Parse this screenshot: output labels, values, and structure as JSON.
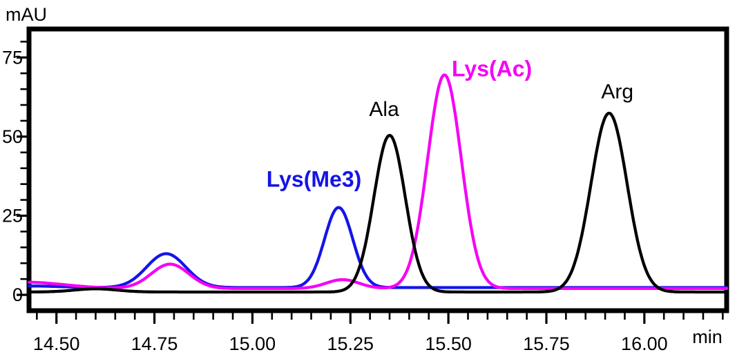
{
  "figure": {
    "background": "#ffffff",
    "frame_color": "#000000"
  },
  "chart_data": {
    "type": "line",
    "title": "",
    "xlabel": "min",
    "ylabel": "mAU",
    "xlim": [
      14.43,
      16.21
    ],
    "ylim": [
      -5,
      84
    ],
    "grid": false,
    "legend_position": "none (peaks labeled inline)",
    "x_major_ticks": [
      "14.50",
      "14.75",
      "15.00",
      "15.25",
      "15.50",
      "15.75",
      "16.00"
    ],
    "x_minor_tick_step": 0.05,
    "x_minor_tick_range": [
      14.45,
      16.2
    ],
    "y_major_ticks": [
      "0",
      "25",
      "50",
      "75"
    ],
    "y_minor_tick_step": 5,
    "y_minor_tick_range": [
      5,
      80
    ],
    "series": [
      {
        "name": "Lys(Me3) trace (blue)",
        "color": "#1414e8",
        "baseline_mAU": 2.3,
        "peaks": [
          {
            "center_min": 14.43,
            "height_mAU": 0.5,
            "sigma_min": 0.08
          },
          {
            "center_min": 14.78,
            "height_mAU": 10.7,
            "sigma_min": 0.05
          },
          {
            "center_min": 15.22,
            "height_mAU": 25.3,
            "sigma_min": 0.036
          }
        ]
      },
      {
        "name": "Lys(Ac) trace (magenta)",
        "color": "#f502f5",
        "baseline_mAU": 2.0,
        "peaks": [
          {
            "center_min": 14.42,
            "height_mAU": 2.0,
            "sigma_min": 0.1
          },
          {
            "center_min": 14.79,
            "height_mAU": 7.7,
            "sigma_min": 0.048
          },
          {
            "center_min": 15.23,
            "height_mAU": 2.8,
            "sigma_min": 0.042
          },
          {
            "center_min": 15.49,
            "height_mAU": 67.5,
            "sigma_min": 0.043
          }
        ]
      },
      {
        "name": "Ala / Arg trace (black)",
        "color": "#000000",
        "baseline_mAU": 0.9,
        "peaks": [
          {
            "center_min": 14.6,
            "height_mAU": 1.0,
            "sigma_min": 0.055
          },
          {
            "center_min": 15.35,
            "height_mAU": 49.5,
            "sigma_min": 0.04
          },
          {
            "center_min": 15.91,
            "height_mAU": 56.5,
            "sigma_min": 0.046
          }
        ]
      }
    ],
    "annotations": [
      {
        "text": "Lys(Me3)",
        "x_min": 15.157,
        "y_mAU": 36.6,
        "color": "#1414e8",
        "bold": true
      },
      {
        "text": "Ala",
        "x_min": 15.336,
        "y_mAU": 58.9,
        "color": "#000000",
        "bold": false
      },
      {
        "text": "Lys(Ac)",
        "x_min": 15.611,
        "y_mAU": 71.5,
        "color": "#f502f5",
        "bold": true
      },
      {
        "text": "Arg",
        "x_min": 15.931,
        "y_mAU": 64.5,
        "color": "#000000",
        "bold": false
      }
    ]
  }
}
